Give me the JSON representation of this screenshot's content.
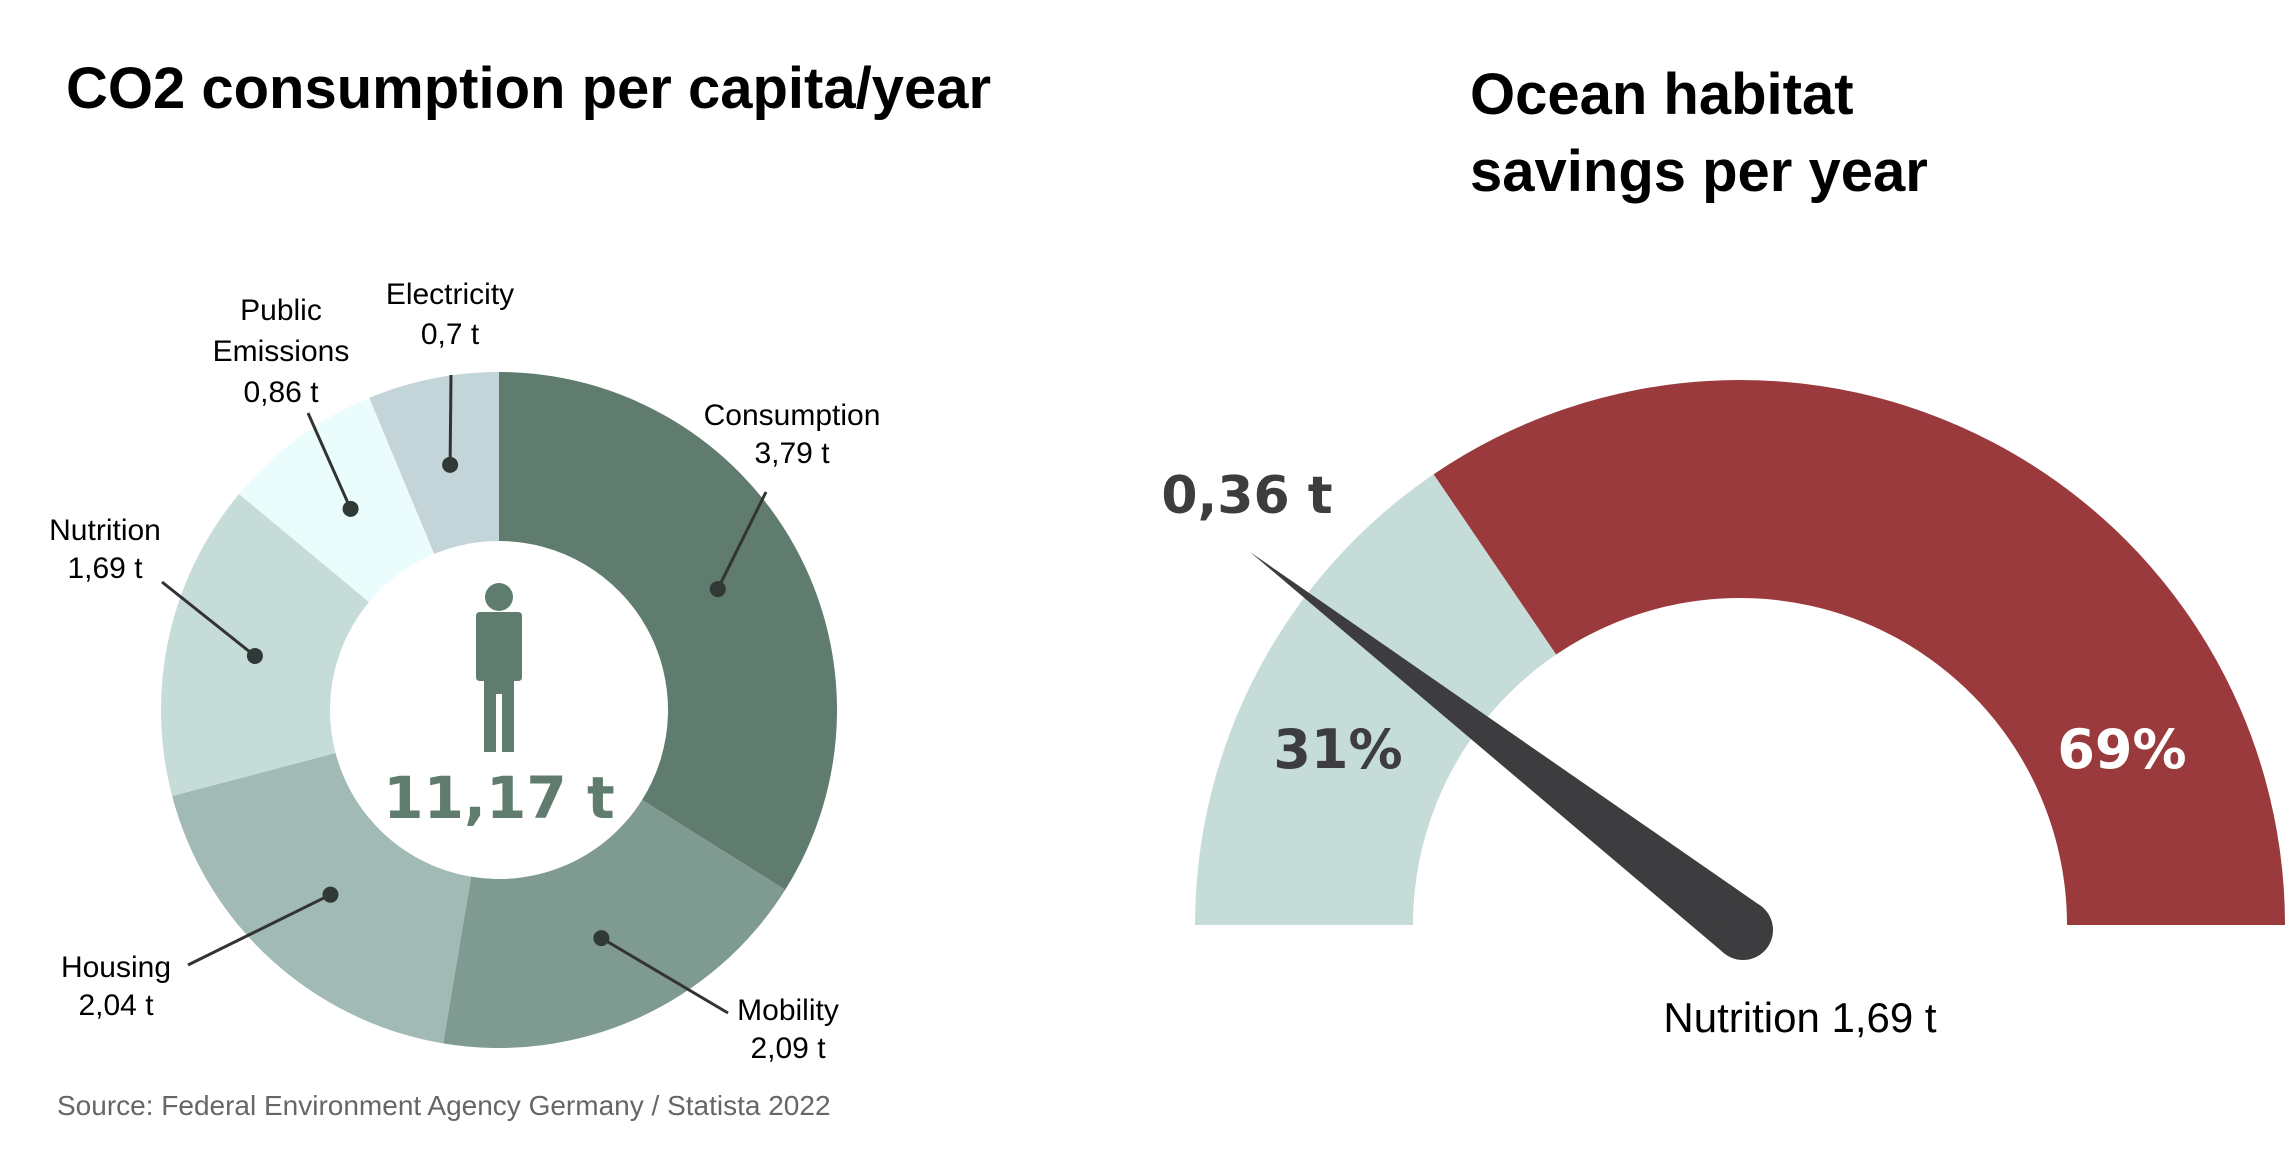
{
  "chart_data": [
    {
      "type": "pie",
      "title": "CO2 consumption per capita/year",
      "center_label": "11,17 t",
      "center_icon": "person-icon",
      "source": "Source: Federal Environment Agency Germany / Statista 2022",
      "slices": [
        {
          "name": "Consumption",
          "value": 3.79,
          "value_label": "3,79 t",
          "color": "#5f7c6e"
        },
        {
          "name": "Mobility",
          "value": 2.09,
          "value_label": "2,09 t",
          "color": "#7f9a91"
        },
        {
          "name": "Housing",
          "value": 2.04,
          "value_label": "2,04 t",
          "color": "#a2bab5"
        },
        {
          "name": "Nutrition",
          "value": 1.69,
          "value_label": "1,69 t",
          "color": "#c5dcd8"
        },
        {
          "name": "Public Emissions",
          "value": 0.86,
          "value_label": "0,86 t",
          "color": "#ebfcfc"
        },
        {
          "name": "Electricity",
          "value": 0.7,
          "value_label": "0,7 t",
          "color": "#c4d5da"
        }
      ]
    },
    {
      "type": "gauge",
      "title": "Ocean habitat savings per year",
      "pointer_label": "0,36 t",
      "bottom_label": "Nutrition 1,69 t",
      "segments": [
        {
          "value": 31,
          "label": "31%",
          "color": "#c5dcd8"
        },
        {
          "value": 69,
          "label": "69%",
          "color": "#9b3a3c"
        }
      ],
      "needle_color": "#3d3d3f"
    }
  ]
}
